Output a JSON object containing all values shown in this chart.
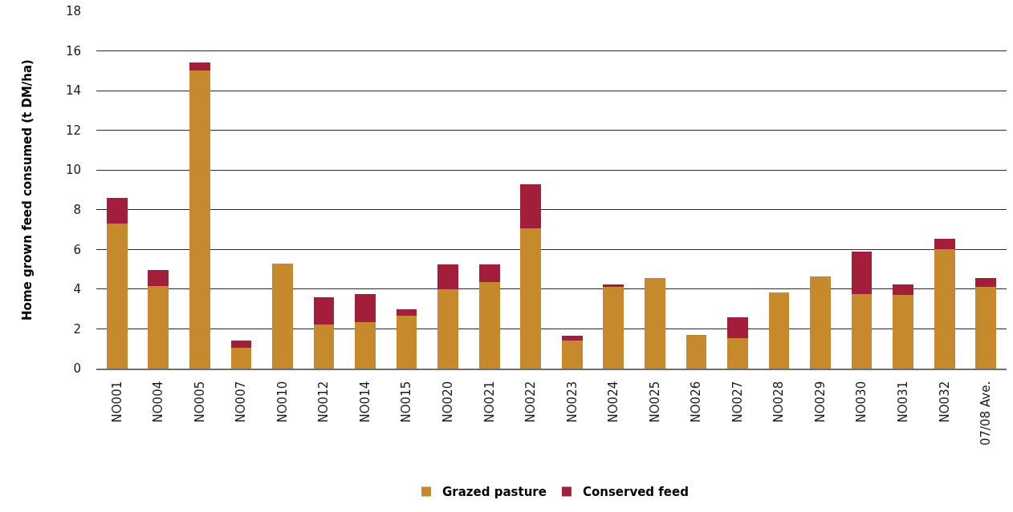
{
  "chart_data": {
    "type": "bar",
    "stacked": true,
    "ylabel": "Home grown feed consumed (t DM/ha)",
    "categories": [
      "NO001",
      "NO004",
      "NO005",
      "NO007",
      "NO010",
      "NO012",
      "NO014",
      "NO015",
      "NO020",
      "NO021",
      "NO022",
      "NO023",
      "NO024",
      "NO025",
      "NO026",
      "NO027",
      "NO028",
      "NO029",
      "NO030",
      "NO031",
      "NO032",
      "07/08 Ave."
    ],
    "series": [
      {
        "name": "Grazed pasture",
        "color": "#c68a2c",
        "values": [
          7.3,
          4.15,
          15.0,
          1.05,
          5.3,
          2.2,
          2.35,
          2.65,
          4.0,
          4.35,
          7.05,
          1.4,
          4.1,
          4.55,
          1.7,
          1.55,
          3.85,
          4.65,
          3.75,
          3.7,
          6.0,
          4.1
        ]
      },
      {
        "name": "Conserved feed",
        "color": "#a31e3a",
        "values": [
          1.3,
          0.8,
          0.4,
          0.35,
          null,
          1.4,
          1.4,
          0.35,
          1.25,
          0.9,
          2.25,
          0.25,
          0.15,
          null,
          null,
          1.05,
          null,
          null,
          2.15,
          0.55,
          0.55,
          0.45
        ]
      }
    ],
    "ylim": [
      0,
      18
    ],
    "yticks": [
      0,
      2,
      4,
      6,
      8,
      10,
      12,
      14,
      16,
      18
    ],
    "grid": "y",
    "legend": "bottom"
  }
}
